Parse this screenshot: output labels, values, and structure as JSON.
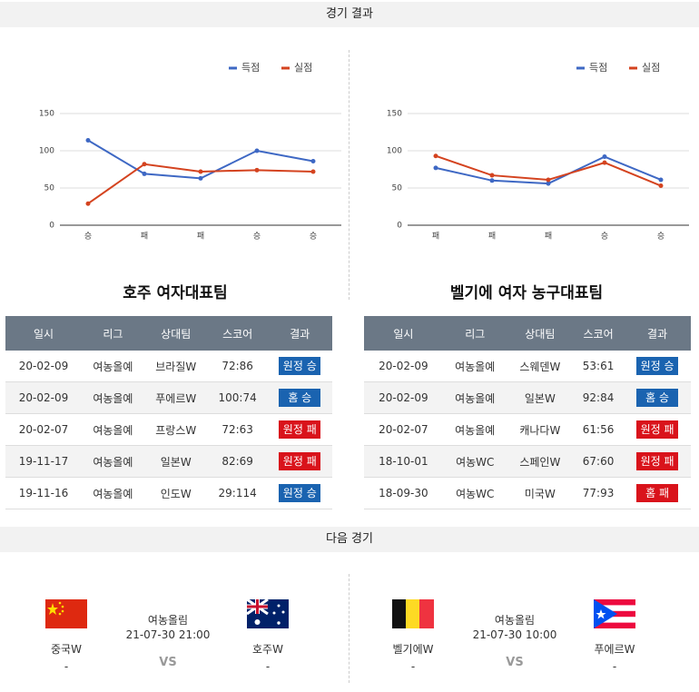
{
  "header": {
    "title": "경기 결과"
  },
  "chart_data": [
    {
      "type": "line",
      "categories": [
        "승",
        "패",
        "패",
        "승",
        "승"
      ],
      "series": [
        {
          "name": "득점",
          "color": "#3e68c4",
          "values": [
            114,
            69,
            63,
            100,
            86
          ]
        },
        {
          "name": "실점",
          "color": "#d4431f",
          "values": [
            29,
            82,
            72,
            74,
            72
          ]
        }
      ],
      "ylim": [
        0,
        150
      ],
      "yticks": [
        0,
        50,
        100,
        150
      ],
      "grid": true,
      "legend": "top-right"
    },
    {
      "type": "line",
      "categories": [
        "패",
        "패",
        "패",
        "승",
        "승"
      ],
      "series": [
        {
          "name": "득점",
          "color": "#3e68c4",
          "values": [
            77,
            60,
            56,
            92,
            61
          ]
        },
        {
          "name": "실점",
          "color": "#d4431f",
          "values": [
            93,
            67,
            61,
            84,
            53
          ]
        }
      ],
      "ylim": [
        0,
        150
      ],
      "yticks": [
        0,
        50,
        100,
        150
      ],
      "grid": true,
      "legend": "top-right"
    }
  ],
  "teams": [
    {
      "name": "호주 여자대표팀",
      "columns": [
        "일시",
        "리그",
        "상대팀",
        "스코어",
        "결과"
      ],
      "rows": [
        [
          "20-02-09",
          "여농올예",
          "브라질W",
          "72:86",
          "원정 승"
        ],
        [
          "20-02-09",
          "여농올예",
          "푸에르W",
          "100:74",
          "홈 승"
        ],
        [
          "20-02-07",
          "여농올예",
          "프랑스W",
          "72:63",
          "원정 패"
        ],
        [
          "19-11-17",
          "여농올예",
          "일본W",
          "82:69",
          "원정 패"
        ],
        [
          "19-11-16",
          "여농올예",
          "인도W",
          "29:114",
          "원정 승"
        ]
      ],
      "result_colors": [
        "#1a63b0",
        "#1a63b0",
        "#d9131b",
        "#d9131b",
        "#1a63b0"
      ]
    },
    {
      "name": "벨기에 여자 농구대표팀",
      "columns": [
        "일시",
        "리그",
        "상대팀",
        "스코어",
        "결과"
      ],
      "rows": [
        [
          "20-02-09",
          "여농올예",
          "스웨덴W",
          "53:61",
          "원정 승"
        ],
        [
          "20-02-09",
          "여농올예",
          "일본W",
          "92:84",
          "홈 승"
        ],
        [
          "20-02-07",
          "여농올예",
          "캐나다W",
          "61:56",
          "원정 패"
        ],
        [
          "18-10-01",
          "여농WC",
          "스페인W",
          "67:60",
          "원정 패"
        ],
        [
          "18-09-30",
          "여농WC",
          "미국W",
          "77:93",
          "홈 패"
        ]
      ],
      "result_colors": [
        "#1a63b0",
        "#1a63b0",
        "#d9131b",
        "#d9131b",
        "#d9131b"
      ]
    }
  ],
  "next": {
    "title": "다음 경기",
    "games": [
      {
        "league": "여농올림",
        "datetime": "21-07-30 21:00",
        "vs": "VS",
        "home": {
          "name": "중국W",
          "rank": "-"
        },
        "away": {
          "name": "호주W",
          "rank": "-"
        }
      },
      {
        "league": "여농올림",
        "datetime": "21-07-30 10:00",
        "vs": "VS",
        "home": {
          "name": "벨기에W",
          "rank": "-"
        },
        "away": {
          "name": "푸에르W",
          "rank": "-"
        }
      }
    ]
  }
}
